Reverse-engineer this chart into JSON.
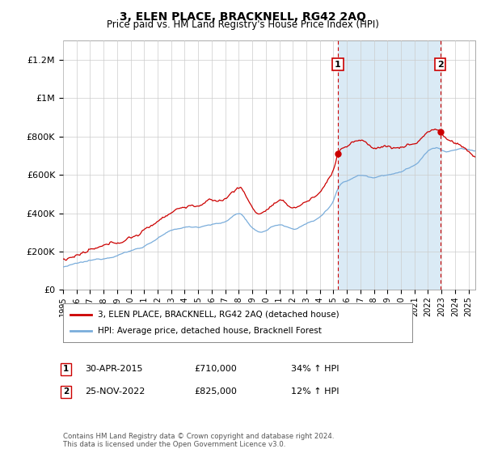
{
  "title": "3, ELEN PLACE, BRACKNELL, RG42 2AQ",
  "subtitle": "Price paid vs. HM Land Registry's House Price Index (HPI)",
  "legend_property": "3, ELEN PLACE, BRACKNELL, RG42 2AQ (detached house)",
  "legend_hpi": "HPI: Average price, detached house, Bracknell Forest",
  "sale1_label": "1",
  "sale1_date": "30-APR-2015",
  "sale1_price": "£710,000",
  "sale1_hpi": "34% ↑ HPI",
  "sale1_year": 2015.33,
  "sale1_value": 710000,
  "sale2_label": "2",
  "sale2_date": "25-NOV-2022",
  "sale2_price": "£825,000",
  "sale2_hpi": "12% ↑ HPI",
  "sale2_year": 2022.9,
  "sale2_value": 825000,
  "yticks": [
    0,
    200000,
    400000,
    600000,
    800000,
    1000000,
    1200000
  ],
  "ytick_labels": [
    "£0",
    "£200K",
    "£400K",
    "£600K",
    "£800K",
    "£1M",
    "£1.2M"
  ],
  "xmin": 1995,
  "xmax": 2025.5,
  "ymin": 0,
  "ymax": 1300000,
  "property_color": "#cc0000",
  "hpi_color": "#7aaddb",
  "shade_color": "#daeaf5",
  "sale_marker_color": "#cc0000",
  "grid_color": "#cccccc",
  "background_color": "#ffffff",
  "footer": "Contains HM Land Registry data © Crown copyright and database right 2024.\nThis data is licensed under the Open Government Licence v3.0."
}
